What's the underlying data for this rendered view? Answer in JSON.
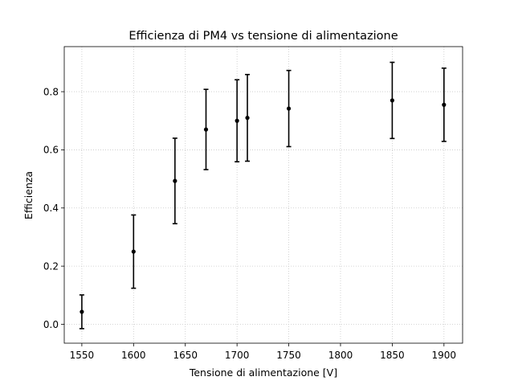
{
  "chart_data": {
    "type": "scatter",
    "title": "Efficienza di PM4 vs tensione di alimentazione",
    "xlabel": "Tensione di alimentazione [V]",
    "ylabel": "Efficienza",
    "xlim": [
      1533,
      1918
    ],
    "ylim": [
      -0.065,
      0.955
    ],
    "grid": true,
    "x_ticks": [
      1550,
      1600,
      1650,
      1700,
      1750,
      1800,
      1850,
      1900
    ],
    "y_ticks": [
      0.0,
      0.2,
      0.4,
      0.6,
      0.8
    ],
    "series": [
      {
        "color": "#000000",
        "marker": "point-with-errorbar",
        "points": [
          {
            "x": 1550,
            "y": 0.043,
            "err": 0.058
          },
          {
            "x": 1600,
            "y": 0.25,
            "err": 0.126
          },
          {
            "x": 1640,
            "y": 0.493,
            "err": 0.147
          },
          {
            "x": 1670,
            "y": 0.67,
            "err": 0.138
          },
          {
            "x": 1700,
            "y": 0.7,
            "err": 0.141
          },
          {
            "x": 1710,
            "y": 0.71,
            "err": 0.149
          },
          {
            "x": 1750,
            "y": 0.742,
            "err": 0.131
          },
          {
            "x": 1850,
            "y": 0.77,
            "err": 0.131
          },
          {
            "x": 1900,
            "y": 0.755,
            "err": 0.126
          }
        ]
      }
    ]
  }
}
